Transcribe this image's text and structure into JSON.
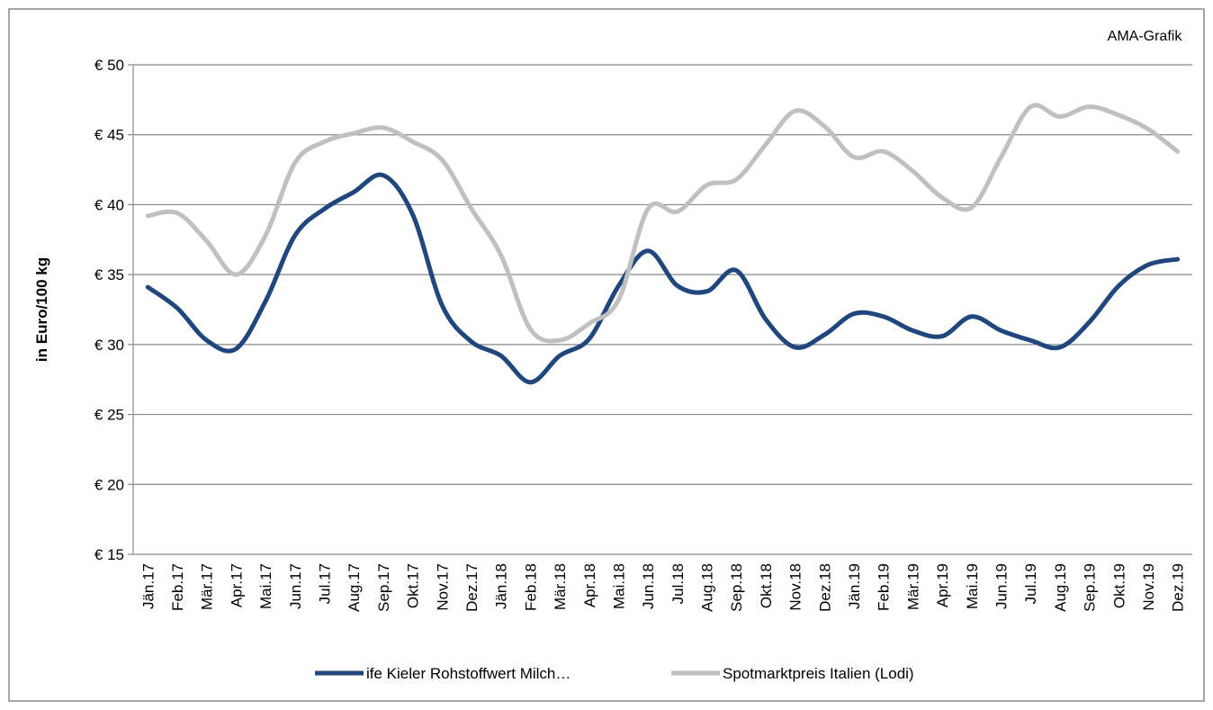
{
  "chart_data": {
    "type": "line",
    "annotation": "AMA-Grafik",
    "y_label": "in Euro/100 kg",
    "categories": [
      "Jän.17",
      "Feb.17",
      "Mär.17",
      "Apr.17",
      "Mai.17",
      "Jun.17",
      "Jul.17",
      "Aug.17",
      "Sep.17",
      "Okt.17",
      "Nov.17",
      "Dez.17",
      "Jän.18",
      "Feb.18",
      "Mär.18",
      "Apr.18",
      "Mai.18",
      "Jun.18",
      "Jul.18",
      "Aug.18",
      "Sep.18",
      "Okt.18",
      "Nov.18",
      "Dez.18",
      "Jän.19",
      "Feb.19",
      "Mär.19",
      "Apr.19",
      "Mai.19",
      "Jun.19",
      "Jul.19",
      "Aug.19",
      "Sep.19",
      "Okt.19",
      "Nov.19",
      "Dez.19"
    ],
    "series": [
      {
        "name": "ife Kieler Rohstoffwert Milch…",
        "color": "#1f477d",
        "values": [
          34.1,
          32.6,
          30.3,
          29.7,
          33.1,
          37.8,
          39.7,
          40.9,
          42.1,
          39.3,
          32.8,
          30.2,
          29.2,
          27.3,
          29.2,
          30.4,
          34.2,
          36.7,
          34.2,
          33.8,
          35.3,
          31.8,
          29.8,
          30.7,
          32.2,
          32.0,
          31.0,
          30.6,
          32.0,
          31.0,
          30.3,
          29.8,
          31.6,
          34.2,
          35.7,
          36.1
        ]
      },
      {
        "name": "Spotmarktpreis Italien (Lodi)",
        "color": "#c0c0c0",
        "values": [
          39.2,
          39.4,
          37.4,
          35.0,
          37.8,
          43.0,
          44.5,
          45.1,
          45.5,
          44.5,
          43.2,
          39.7,
          36.4,
          31.1,
          30.3,
          31.5,
          33.2,
          39.7,
          39.5,
          41.4,
          41.8,
          44.3,
          46.7,
          45.6,
          43.4,
          43.8,
          42.4,
          40.5,
          39.8,
          43.4,
          47.0,
          46.3,
          47.0,
          46.4,
          45.4,
          43.8
        ]
      }
    ],
    "ylim": [
      15,
      50
    ],
    "yticks": [
      {
        "value": 15,
        "label": "€ 15"
      },
      {
        "value": 20,
        "label": "€ 20"
      },
      {
        "value": 25,
        "label": "€ 25"
      },
      {
        "value": 30,
        "label": "€ 30"
      },
      {
        "value": 35,
        "label": "€ 35"
      },
      {
        "value": 40,
        "label": "€ 40"
      },
      {
        "value": 45,
        "label": "€ 45"
      },
      {
        "value": 50,
        "label": "€ 50"
      }
    ],
    "grid": true,
    "legend": "bottom"
  }
}
